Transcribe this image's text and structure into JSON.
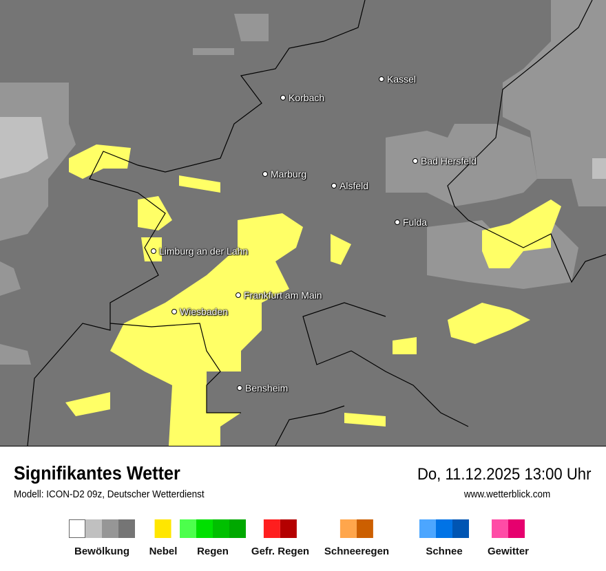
{
  "map": {
    "colors": {
      "background": "#757575",
      "cloud_medium": "#969696",
      "cloud_light": "#c0c0c0",
      "fog": "#ffff66",
      "border": "#000000"
    },
    "cities": [
      "Kassel",
      "Korbach",
      "Bad Hersfeld",
      "Marburg",
      "Alsfeld",
      "Fulda",
      "Limburg an der Lahn",
      "Frankfurt am Main",
      "Wiesbaden",
      "Bensheim"
    ]
  },
  "header": {
    "title": "Signifikantes Wetter",
    "model": "Modell: ICON-D2 09z, Deutscher Wetterdienst",
    "datetime": "Do, 11.12.2025 13:00 Uhr",
    "website": "www.wetterblick.com"
  },
  "legend": [
    {
      "label": "Bewölkung",
      "colors": [
        "#ffffff",
        "#c0c0c0",
        "#969696",
        "#757575"
      ]
    },
    {
      "label": "Nebel",
      "colors": [
        "#ffe600"
      ]
    },
    {
      "label": "Regen",
      "colors": [
        "#4cff4c",
        "#00e000",
        "#00c000",
        "#00a800"
      ]
    },
    {
      "label": "Gefr. Regen",
      "colors": [
        "#ff1e1e",
        "#b40000"
      ]
    },
    {
      "label": "Schneeregen",
      "colors": [
        "#ffa64c",
        "#cc5f00"
      ]
    },
    {
      "label": "Schnee",
      "colors": [
        "#4ca6ff",
        "#0073e6",
        "#0055b3"
      ]
    },
    {
      "label": "Gewitter",
      "colors": [
        "#ff4ca6",
        "#e6006e"
      ]
    }
  ]
}
